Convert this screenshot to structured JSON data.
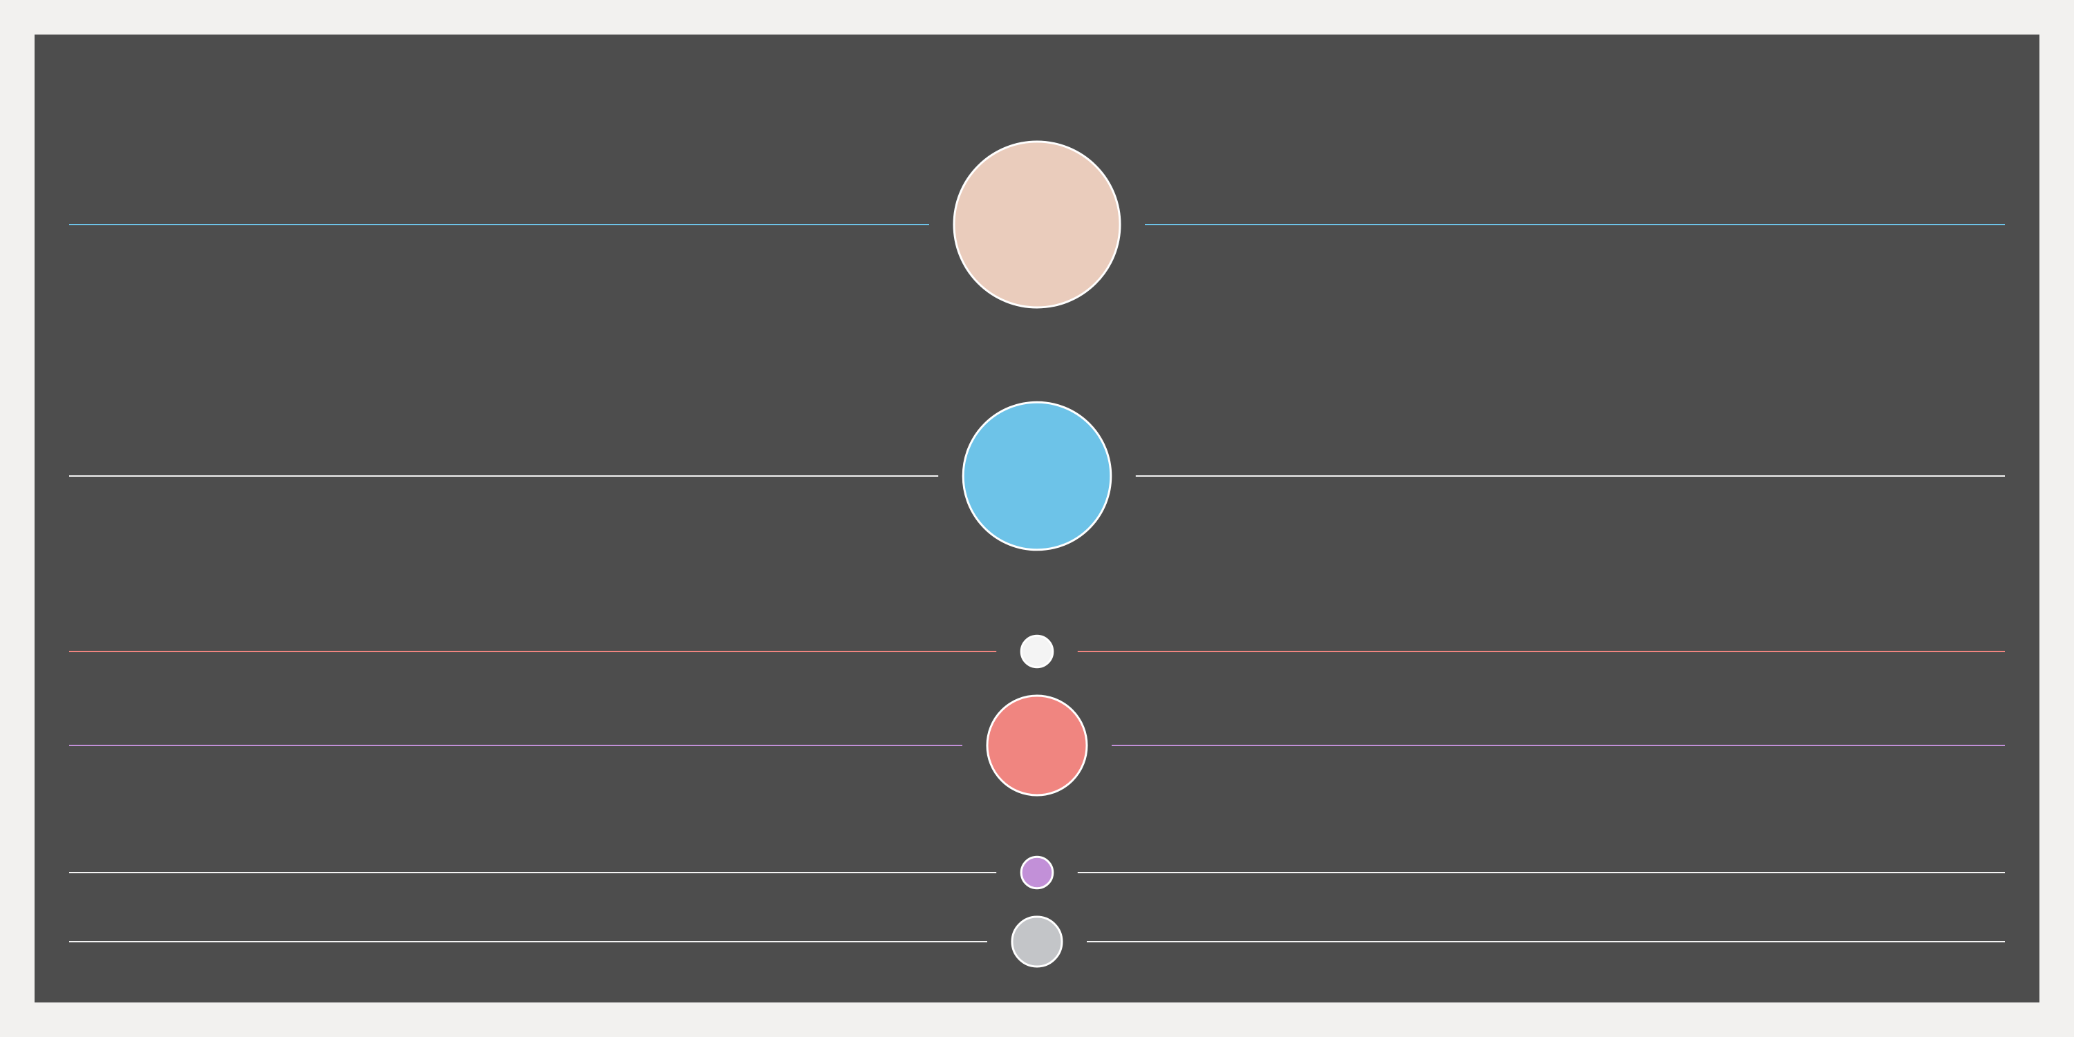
{
  "colors": {
    "page_background": "#f2f1ef",
    "panel_background": "#4d4d4d"
  },
  "rows": [
    {
      "circle_color": "#eaccbc",
      "line_color": "#6dc3e8",
      "relative_size": 1.0
    },
    {
      "circle_color": "#6dc3e8",
      "line_color": "#f4f4f4",
      "relative_size": 0.89
    },
    {
      "circle_color": "#f4f4f4",
      "line_color": "#f08580",
      "relative_size": 0.19
    },
    {
      "circle_color": "#f08580",
      "line_color": "#c290d8",
      "relative_size": 0.6
    },
    {
      "circle_color": "#c290d8",
      "line_color": "#f4f4f4",
      "relative_size": 0.19
    },
    {
      "circle_color": "#c3c5c8",
      "line_color": "#f4f4f4",
      "relative_size": 0.3
    }
  ]
}
